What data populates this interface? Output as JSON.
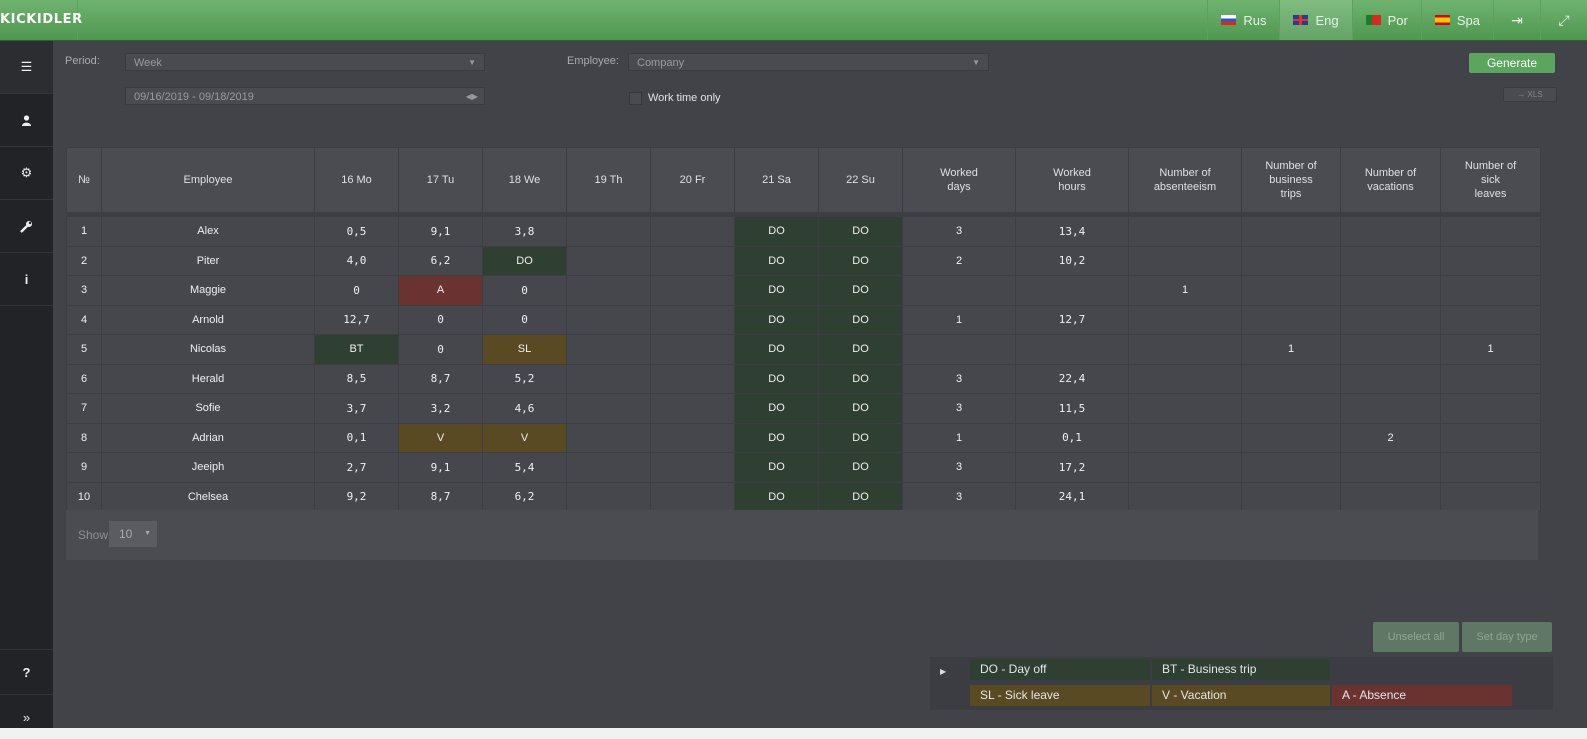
{
  "app": {
    "logo": "KICKIDLER"
  },
  "languages": [
    {
      "code": "ru",
      "label": "Rus",
      "active": false
    },
    {
      "code": "en",
      "label": "Eng",
      "active": true
    },
    {
      "code": "pt",
      "label": "Por",
      "active": false
    },
    {
      "code": "es",
      "label": "Spa",
      "active": false
    }
  ],
  "header_icons": [
    "logout-icon",
    "fullscreen-icon"
  ],
  "sidebar": {
    "items": [
      {
        "icon": "list-icon",
        "glyph": "☰",
        "active": true
      },
      {
        "icon": "user-icon",
        "glyph": "👤",
        "active": false
      },
      {
        "icon": "gears-icon",
        "glyph": "⚙",
        "active": false
      },
      {
        "icon": "wrench-icon",
        "glyph": "🔧",
        "active": false
      },
      {
        "icon": "info-icon",
        "glyph": "i",
        "active": false
      }
    ],
    "bottom": [
      {
        "icon": "help-icon",
        "glyph": "?"
      },
      {
        "icon": "expand-icon",
        "glyph": "»"
      }
    ]
  },
  "filters": {
    "period_label": "Period:",
    "period_value": "Week",
    "date_range": "09/16/2019 - 09/18/2019",
    "employee_label": "Employee:",
    "employee_value": "Company",
    "work_time_only": "Work time only",
    "generate": "Generate",
    "xls": "→ XLS"
  },
  "table": {
    "headers": {
      "no": "№",
      "employee": "Employee",
      "days": [
        "16 Mo",
        "17 Tu",
        "18 We",
        "19 Th",
        "20 Fr",
        "21 Sa",
        "22 Su"
      ],
      "worked_days": [
        "Worked",
        "days"
      ],
      "worked_hours": [
        "Worked",
        "hours"
      ],
      "absenteeism": [
        "Number of",
        "absenteeism"
      ],
      "business_trips": [
        "Number of",
        "business",
        "trips"
      ],
      "vacations": [
        "Number of",
        "vacations"
      ],
      "sick_leaves": [
        "Number of",
        "sick",
        "leaves"
      ]
    },
    "rows": [
      {
        "no": "1",
        "name": "Alex",
        "days": [
          "0,5",
          "9,1",
          "3,8",
          "",
          "",
          "DO",
          "DO"
        ],
        "worked_days": "3",
        "worked_hours": "13,4",
        "absenteeism": "",
        "business_trips": "",
        "vacations": "",
        "sick_leaves": ""
      },
      {
        "no": "2",
        "name": "Piter",
        "days": [
          "4,0",
          "6,2",
          "DO",
          "",
          "",
          "DO",
          "DO"
        ],
        "worked_days": "2",
        "worked_hours": "10,2",
        "absenteeism": "",
        "business_trips": "",
        "vacations": "",
        "sick_leaves": ""
      },
      {
        "no": "3",
        "name": "Maggie",
        "days": [
          "0",
          "A",
          "0",
          "",
          "",
          "DO",
          "DO"
        ],
        "worked_days": "",
        "worked_hours": "",
        "absenteeism": "1",
        "business_trips": "",
        "vacations": "",
        "sick_leaves": ""
      },
      {
        "no": "4",
        "name": "Arnold",
        "days": [
          "12,7",
          "0",
          "0",
          "",
          "",
          "DO",
          "DO"
        ],
        "worked_days": "1",
        "worked_hours": "12,7",
        "absenteeism": "",
        "business_trips": "",
        "vacations": "",
        "sick_leaves": ""
      },
      {
        "no": "5",
        "name": "Nicolas",
        "days": [
          "BT",
          "0",
          "SL",
          "",
          "",
          "DO",
          "DO"
        ],
        "worked_days": "",
        "worked_hours": "",
        "absenteeism": "",
        "business_trips": "1",
        "vacations": "",
        "sick_leaves": "1"
      },
      {
        "no": "6",
        "name": "Herald",
        "days": [
          "8,5",
          "8,7",
          "5,2",
          "",
          "",
          "DO",
          "DO"
        ],
        "worked_days": "3",
        "worked_hours": "22,4",
        "absenteeism": "",
        "business_trips": "",
        "vacations": "",
        "sick_leaves": ""
      },
      {
        "no": "7",
        "name": "Sofie",
        "days": [
          "3,7",
          "3,2",
          "4,6",
          "",
          "",
          "DO",
          "DO"
        ],
        "worked_days": "3",
        "worked_hours": "11,5",
        "absenteeism": "",
        "business_trips": "",
        "vacations": "",
        "sick_leaves": ""
      },
      {
        "no": "8",
        "name": "Adrian",
        "days": [
          "0,1",
          "V",
          "V",
          "",
          "",
          "DO",
          "DO"
        ],
        "worked_days": "1",
        "worked_hours": "0,1",
        "absenteeism": "",
        "business_trips": "",
        "vacations": "2",
        "sick_leaves": ""
      },
      {
        "no": "9",
        "name": "Jeeiph",
        "days": [
          "2,7",
          "9,1",
          "5,4",
          "",
          "",
          "DO",
          "DO"
        ],
        "worked_days": "3",
        "worked_hours": "17,2",
        "absenteeism": "",
        "business_trips": "",
        "vacations": "",
        "sick_leaves": ""
      },
      {
        "no": "10",
        "name": "Chelsea",
        "days": [
          "9,2",
          "8,7",
          "6,2",
          "",
          "",
          "DO",
          "DO"
        ],
        "worked_days": "3",
        "worked_hours": "24,1",
        "absenteeism": "",
        "business_trips": "",
        "vacations": "",
        "sick_leaves": ""
      }
    ]
  },
  "pagination": {
    "show_label": "Show",
    "page_size": "10"
  },
  "actions": {
    "unselect_all": "Unselect all",
    "set_day_type": "Set day type"
  },
  "legend": {
    "items": [
      {
        "code": "DO",
        "label": "DO - Day off"
      },
      {
        "code": "BT",
        "label": "BT - Business trip"
      },
      {
        "code": "SL",
        "label": "SL - Sick leave"
      },
      {
        "code": "V",
        "label": "V - Vacation"
      },
      {
        "code": "A",
        "label": "A - Absence"
      }
    ]
  },
  "colors": {
    "header_green": "#5fa862",
    "day_off": "#2f3f31",
    "business_trip": "#2f3f31",
    "absence": "#6b3330",
    "sick_leave": "#5a4a24",
    "vacation": "#5a4a24"
  }
}
